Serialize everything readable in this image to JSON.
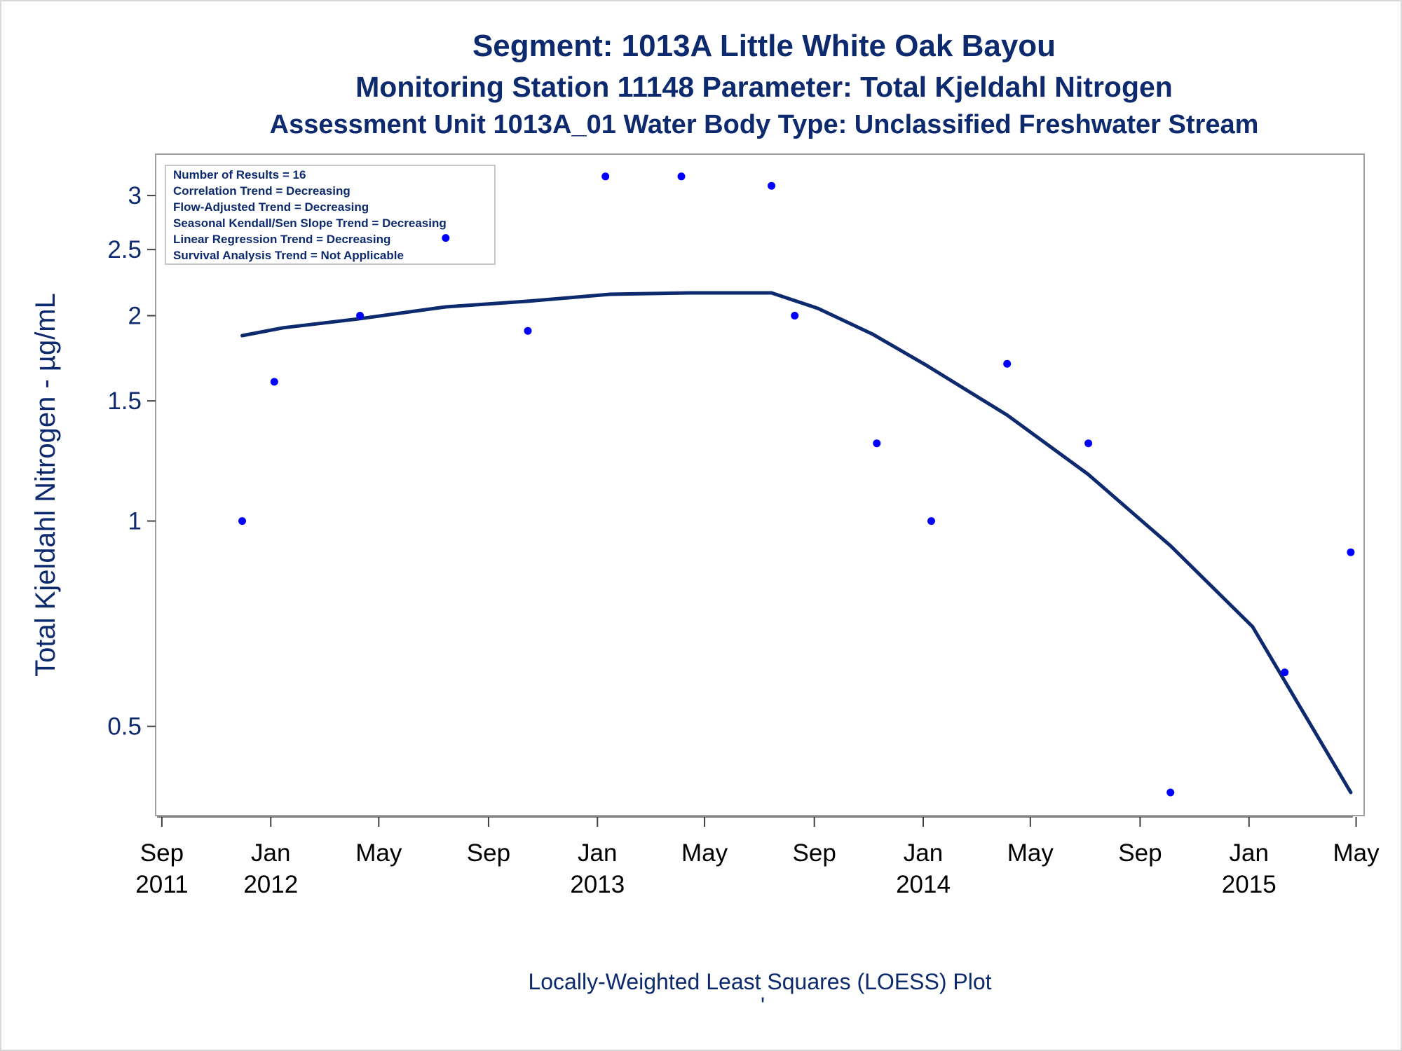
{
  "chart_data": {
    "type": "scatter",
    "title": "Segment: 1013A  Little White Oak Bayou",
    "subtitle": "Monitoring Station 11148 Parameter: Total Kjeldahl Nitrogen",
    "subtitle2": "Assessment Unit 1013A_01   Water Body Type: Unclassified Freshwater Stream",
    "ylabel": "Total Kjeldahl Nitrogen -  µg/mL",
    "xlabel": "",
    "footnote": "Locally-Weighted Least Squares (LOESS) Plot",
    "footnote_mark": "'",
    "ylim": [
      0.37,
      3.45
    ],
    "xlim": [
      "2011-08-25",
      "2015-05-10"
    ],
    "y_scale": "log",
    "grid": false,
    "y_ticks": [
      {
        "value": 3,
        "label": "3"
      },
      {
        "value": 2.5,
        "label": "2.5"
      },
      {
        "value": 2,
        "label": "2"
      },
      {
        "value": 1.5,
        "label": "1.5"
      },
      {
        "value": 1,
        "label": "1"
      },
      {
        "value": 0.5,
        "label": "0.5"
      }
    ],
    "x_ticks": [
      {
        "date": "2011-09-01",
        "month": "Sep",
        "year": "2011"
      },
      {
        "date": "2012-01-01",
        "month": "Jan",
        "year": "2012"
      },
      {
        "date": "2012-05-01",
        "month": "May",
        "year": ""
      },
      {
        "date": "2012-09-01",
        "month": "Sep",
        "year": ""
      },
      {
        "date": "2013-01-01",
        "month": "Jan",
        "year": "2013"
      },
      {
        "date": "2013-05-01",
        "month": "May",
        "year": ""
      },
      {
        "date": "2013-09-01",
        "month": "Sep",
        "year": ""
      },
      {
        "date": "2014-01-01",
        "month": "Jan",
        "year": "2014"
      },
      {
        "date": "2014-05-01",
        "month": "May",
        "year": ""
      },
      {
        "date": "2014-09-01",
        "month": "Sep",
        "year": ""
      },
      {
        "date": "2015-01-01",
        "month": "Jan",
        "year": "2015"
      },
      {
        "date": "2015-05-01",
        "month": "May",
        "year": ""
      }
    ],
    "legend_placement": "top-left",
    "inset_lines": [
      "Number of Results = 16",
      "Correlation Trend = Decreasing",
      "Flow-Adjusted Trend = Decreasing",
      "Seasonal Kendall/Sen Slope Trend = Decreasing",
      "Linear Regression Trend = Decreasing",
      "Survival Analysis Trend = Not Applicable"
    ],
    "series": [
      {
        "type": "scatter",
        "color": "#0000ff",
        "points": [
          {
            "x": "2011-11-30",
            "y": 1.0
          },
          {
            "x": "2012-01-05",
            "y": 1.6
          },
          {
            "x": "2012-04-10",
            "y": 2.0
          },
          {
            "x": "2012-07-15",
            "y": 2.6
          },
          {
            "x": "2012-10-15",
            "y": 1.9
          },
          {
            "x": "2013-01-10",
            "y": 3.2
          },
          {
            "x": "2013-04-05",
            "y": 3.2
          },
          {
            "x": "2013-07-15",
            "y": 3.1
          },
          {
            "x": "2013-08-10",
            "y": 2.0
          },
          {
            "x": "2013-11-10",
            "y": 1.3
          },
          {
            "x": "2014-01-10",
            "y": 1.0
          },
          {
            "x": "2014-04-05",
            "y": 1.7
          },
          {
            "x": "2014-07-05",
            "y": 1.3
          },
          {
            "x": "2014-10-05",
            "y": 0.4
          },
          {
            "x": "2015-02-10",
            "y": 0.6
          },
          {
            "x": "2015-04-25",
            "y": 0.9
          }
        ]
      },
      {
        "type": "line",
        "color": "#0d2a6e",
        "points": [
          {
            "x": "2011-11-30",
            "y": 1.87
          },
          {
            "x": "2012-01-15",
            "y": 1.92
          },
          {
            "x": "2012-04-10",
            "y": 1.98
          },
          {
            "x": "2012-07-15",
            "y": 2.06
          },
          {
            "x": "2012-10-15",
            "y": 2.1
          },
          {
            "x": "2013-01-15",
            "y": 2.15
          },
          {
            "x": "2013-04-15",
            "y": 2.16
          },
          {
            "x": "2013-07-15",
            "y": 2.16
          },
          {
            "x": "2013-09-05",
            "y": 2.05
          },
          {
            "x": "2013-11-05",
            "y": 1.88
          },
          {
            "x": "2014-01-05",
            "y": 1.69
          },
          {
            "x": "2014-04-05",
            "y": 1.43
          },
          {
            "x": "2014-07-05",
            "y": 1.17
          },
          {
            "x": "2014-10-05",
            "y": 0.92
          },
          {
            "x": "2015-01-05",
            "y": 0.7
          },
          {
            "x": "2015-04-25",
            "y": 0.4
          }
        ]
      }
    ]
  }
}
